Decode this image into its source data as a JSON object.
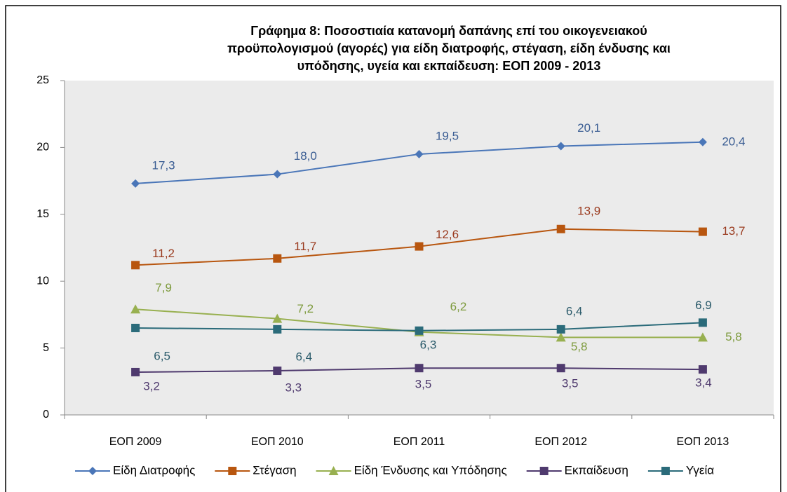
{
  "chart_data": {
    "type": "line",
    "title": [
      "Γράφημα 8: Ποσοστιαία κατανομή δαπάνης επί του οικογενειακού",
      "προϋπολογισμού (αγορές) για είδη διατροφής, στέγαση, είδη ένδυσης και",
      "υπόδησης, υγεία και εκπαίδευση:  ΕΟΠ 2009 - 2013"
    ],
    "categories": [
      "ΕΟΠ 2009",
      "ΕΟΠ 2010",
      "ΕΟΠ 2011",
      "ΕΟΠ 2012",
      "ΕΟΠ 2013"
    ],
    "series": [
      {
        "name": "Είδη Διατροφής",
        "color": "#4a76b8",
        "label_color": "#3a5d93",
        "marker": "diamond",
        "values": [
          17.3,
          18.0,
          19.5,
          20.1,
          20.4
        ],
        "value_labels": [
          "17,3",
          "18,0",
          "19,5",
          "20,1",
          "20,4"
        ]
      },
      {
        "name": "Στέγαση",
        "color": "#b8560f",
        "label_color": "#9a3a1e",
        "marker": "square",
        "values": [
          11.2,
          11.7,
          12.6,
          13.9,
          13.7
        ],
        "value_labels": [
          "11,2",
          "11,7",
          "12,6",
          "13,9",
          "13,7"
        ]
      },
      {
        "name": "Είδη Ένδυσης και Υπόδησης",
        "color": "#98b050",
        "label_color": "#7d9a3c",
        "marker": "triangle",
        "values": [
          7.9,
          7.2,
          6.2,
          5.8,
          5.8
        ],
        "value_labels": [
          "7,9",
          "7,2",
          "6,2",
          "5,8",
          "5,8"
        ]
      },
      {
        "name": "Εκπαίδευση",
        "color": "#4f3a6e",
        "label_color": "#4f3a6e",
        "marker": "square",
        "values": [
          3.2,
          3.3,
          3.5,
          3.5,
          3.4
        ],
        "value_labels": [
          "3,2",
          "3,3",
          "3,5",
          "3,5",
          "3,4"
        ]
      },
      {
        "name": "Υγεία",
        "color": "#2b6b7a",
        "label_color": "#2b5b6b",
        "marker": "square",
        "values": [
          6.5,
          6.4,
          6.3,
          6.4,
          6.9
        ],
        "value_labels": [
          "6,5",
          "6,4",
          "6,3",
          "6,4",
          "6,9"
        ]
      }
    ],
    "ylim": [
      0,
      25
    ],
    "yticks": [
      0,
      5,
      10,
      15,
      20,
      25
    ],
    "grid": false
  }
}
